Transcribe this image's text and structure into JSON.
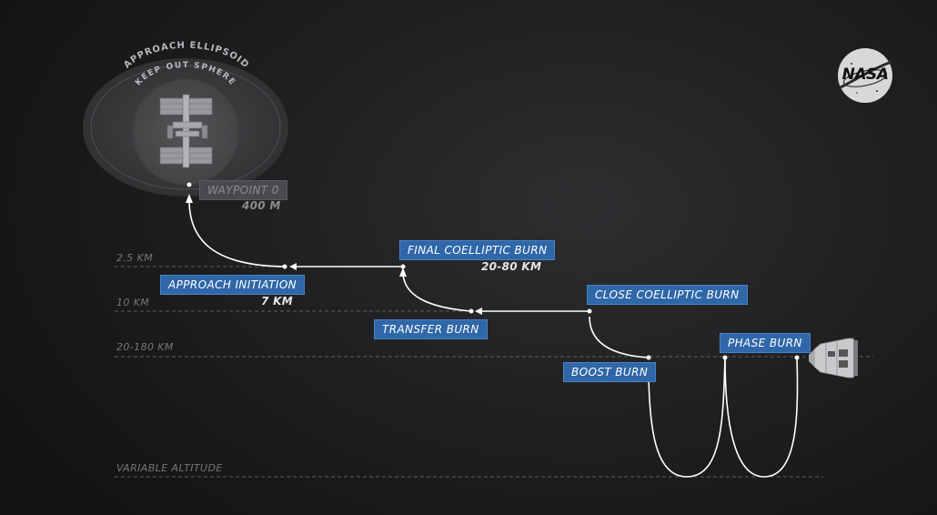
{
  "zones": {
    "ellipsoid_label": "APPROACH ELLIPSOID",
    "sphere_label": "KEEP OUT SPHERE"
  },
  "altitudes": {
    "alt_2_5": "2.5 KM",
    "alt_10": "10 KM",
    "alt_20_180": "20-180 KM",
    "alt_variable": "VARIABLE ALTITUDE"
  },
  "maneuvers": {
    "waypoint": {
      "label": "WAYPOINT 0",
      "distance": "400 M"
    },
    "approach": {
      "label": "APPROACH INITIATION",
      "distance": "7 KM"
    },
    "final_coelliptic": {
      "label": "FINAL COELLIPTIC BURN",
      "distance": "20-80 KM"
    },
    "transfer": {
      "label": "TRANSFER BURN"
    },
    "close_coelliptic": {
      "label": "CLOSE COELLIPTIC BURN"
    },
    "boost": {
      "label": "BOOST BURN"
    },
    "phase": {
      "label": "PHASE BURN"
    }
  },
  "logo": {
    "text": "NASA"
  },
  "colors": {
    "label_bg": "#2f67a8",
    "inactive_bg": "#4a4a4e",
    "path": "#ffffff",
    "altitude_line": "#5c5c60"
  }
}
